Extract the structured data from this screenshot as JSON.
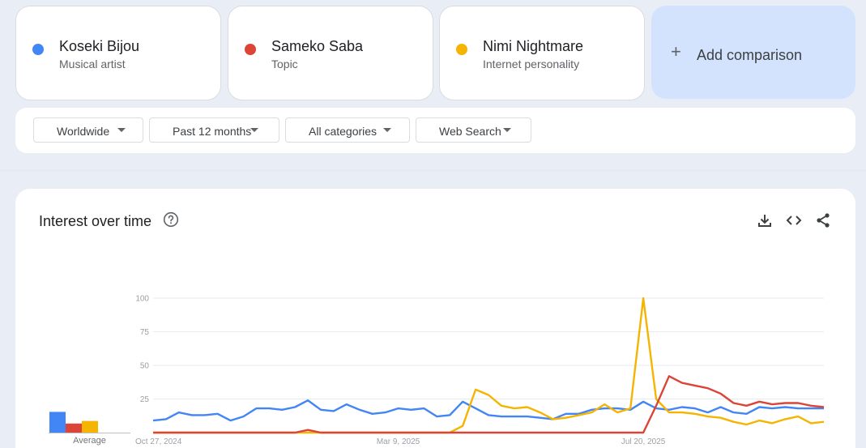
{
  "terms": [
    {
      "name": "Koseki Bijou",
      "type": "Musical artist",
      "color": "#4285f4"
    },
    {
      "name": "Sameko Saba",
      "type": "Topic",
      "color": "#db4437"
    },
    {
      "name": "Nimi Nightmare",
      "type": "Internet personality",
      "color": "#f4b400"
    }
  ],
  "add_comparison": {
    "icon": "plus-icon",
    "label": "Add comparison"
  },
  "filters": {
    "region": "Worldwide",
    "time": "Past 12 months",
    "category": "All categories",
    "search_type": "Web Search"
  },
  "panel": {
    "title": "Interest over time",
    "icons": [
      "help-icon",
      "download-icon",
      "embed-icon",
      "share-icon"
    ]
  },
  "average_label": "Average",
  "chart_data": {
    "type": "line",
    "ylim": [
      0,
      100
    ],
    "y_ticks": [
      "100",
      "75",
      "50",
      "25"
    ],
    "x_tick_labels": [
      "Oct 27, 2024",
      "Mar 9, 2025",
      "Jul 20, 2025"
    ],
    "x_tick_index": [
      0,
      19,
      38
    ],
    "grid": true,
    "averages": [
      {
        "name": "Koseki Bijou",
        "value": 16
      },
      {
        "name": "Sameko Saba",
        "value": 7
      },
      {
        "name": "Nimi Nightmare",
        "value": 9
      }
    ],
    "series": [
      {
        "name": "Koseki Bijou",
        "color": "#4285f4",
        "values": [
          9,
          10,
          15,
          13,
          13,
          14,
          9,
          12,
          18,
          18,
          17,
          19,
          24,
          17,
          16,
          21,
          17,
          14,
          15,
          18,
          17,
          18,
          12,
          13,
          23,
          18,
          13,
          12,
          12,
          12,
          11,
          10,
          14,
          14,
          17,
          18,
          18,
          17,
          23,
          18,
          17,
          19,
          18,
          15,
          19,
          15,
          14,
          19,
          18,
          19,
          18,
          18,
          18
        ]
      },
      {
        "name": "Sameko Saba",
        "color": "#db4437",
        "values": [
          0,
          0,
          0,
          0,
          0,
          0,
          0,
          0,
          0,
          0,
          0,
          0,
          2,
          0,
          0,
          0,
          0,
          0,
          0,
          0,
          0,
          0,
          0,
          0,
          0,
          0,
          0,
          0,
          0,
          0,
          0,
          0,
          0,
          0,
          0,
          0,
          0,
          0,
          0,
          20,
          42,
          37,
          35,
          33,
          29,
          22,
          20,
          23,
          21,
          22,
          22,
          20,
          19
        ]
      },
      {
        "name": "Nimi Nightmare",
        "color": "#f4b400",
        "values": [
          0,
          0,
          0,
          0,
          0,
          0,
          0,
          0,
          0,
          0,
          0,
          0,
          0,
          0,
          0,
          0,
          0,
          0,
          0,
          0,
          0,
          0,
          0,
          0,
          5,
          32,
          28,
          20,
          18,
          19,
          15,
          10,
          11,
          13,
          15,
          21,
          15,
          18,
          100,
          25,
          15,
          15,
          14,
          12,
          11,
          8,
          6,
          9,
          7,
          10,
          12,
          7,
          8
        ]
      }
    ]
  }
}
